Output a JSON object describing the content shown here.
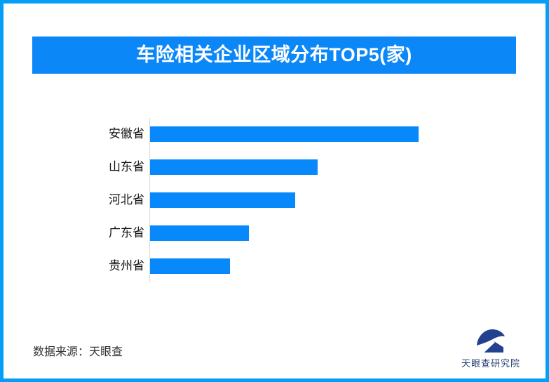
{
  "page": {
    "border_color": "#059ef7",
    "background": "#ffffff"
  },
  "header": {
    "title": "车险相关企业区域分布TOP5(家)",
    "background": "#0b87f8",
    "text_color": "#ffffff"
  },
  "chart_data": {
    "type": "bar",
    "orientation": "horizontal",
    "title": "车险相关企业区域分布TOP5(家)",
    "unit_label": "家",
    "categories": [
      "安徽省",
      "山东省",
      "河北省",
      "广东省",
      "贵州省"
    ],
    "values": [
      383,
      239,
      207,
      141,
      114
    ],
    "value_note": "no numeric axis or data labels shown; values are relative bar lengths measured in px",
    "bar_color": "#0789fb",
    "axis_line_color": "#d9d9d9",
    "grid": false,
    "legend": false,
    "data_labels": false
  },
  "footer": {
    "source": "数据来源：天眼查",
    "logo_text": "天眼查研究院",
    "logo_color": "#24418f"
  }
}
